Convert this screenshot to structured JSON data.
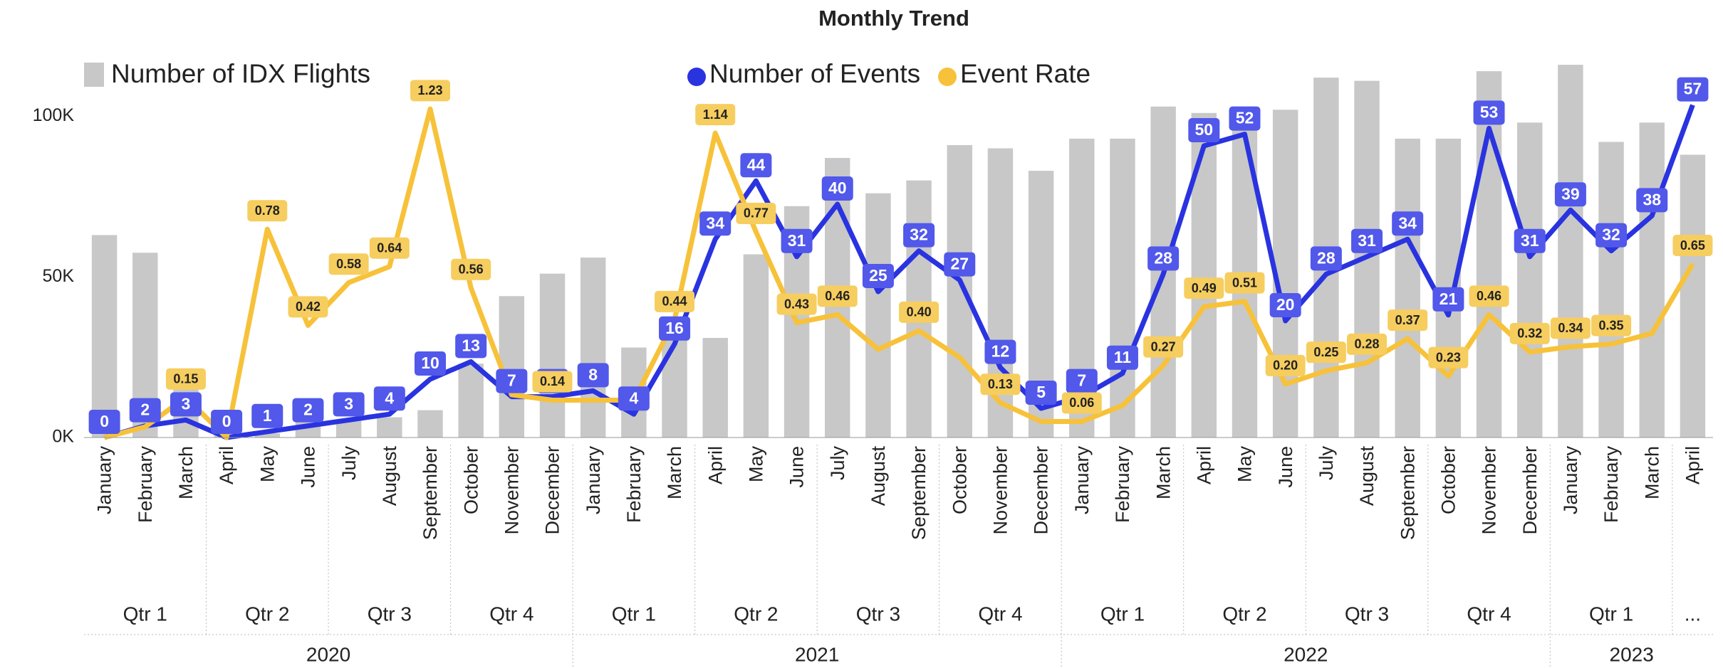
{
  "chart_data": {
    "type": "combo",
    "title": "Monthly Trend",
    "categories": [
      "January",
      "February",
      "March",
      "April",
      "May",
      "June",
      "July",
      "August",
      "September",
      "October",
      "November",
      "December",
      "January",
      "February",
      "March",
      "April",
      "May",
      "June",
      "July",
      "August",
      "September",
      "October",
      "November",
      "December",
      "January",
      "February",
      "March",
      "April",
      "May",
      "June",
      "July",
      "August",
      "September",
      "October",
      "November",
      "December",
      "January",
      "February",
      "March",
      "April"
    ],
    "quarters": [
      {
        "label": "Qtr 1",
        "months": 3
      },
      {
        "label": "Qtr 2",
        "months": 3
      },
      {
        "label": "Qtr 3",
        "months": 3
      },
      {
        "label": "Qtr 4",
        "months": 3
      },
      {
        "label": "Qtr 1",
        "months": 3
      },
      {
        "label": "Qtr 2",
        "months": 3
      },
      {
        "label": "Qtr 3",
        "months": 3
      },
      {
        "label": "Qtr 4",
        "months": 3
      },
      {
        "label": "Qtr 1",
        "months": 3
      },
      {
        "label": "Qtr 2",
        "months": 3
      },
      {
        "label": "Qtr 3",
        "months": 3
      },
      {
        "label": "Qtr 4",
        "months": 3
      },
      {
        "label": "Qtr 1",
        "months": 3
      },
      {
        "label": "...",
        "months": 1
      }
    ],
    "years": [
      {
        "label": "2020",
        "months": 12
      },
      {
        "label": "2021",
        "months": 12
      },
      {
        "label": "2022",
        "months": 12
      },
      {
        "label": "2023",
        "months": 4
      }
    ],
    "ylim": [
      0,
      118000
    ],
    "yticks": [
      {
        "value": 0,
        "label": "0K"
      },
      {
        "value": 50000,
        "label": "50K"
      },
      {
        "value": 100000,
        "label": "100K"
      }
    ],
    "y2lim": [
      0,
      65
    ],
    "y3lim": [
      0,
      1.42
    ],
    "grid": false,
    "legend": "top",
    "series": [
      {
        "name": "Number of IDX Flights",
        "type": "bar",
        "color": "#c8c8c8",
        "values": [
          63000,
          57500,
          20000,
          1000,
          1300,
          4800,
          5200,
          6300,
          8500,
          23000,
          44000,
          51000,
          56000,
          28000,
          36000,
          31000,
          57000,
          72000,
          87000,
          76000,
          80000,
          91000,
          90000,
          83000,
          93000,
          93000,
          103000,
          101000,
          102000,
          102000,
          112000,
          111000,
          93000,
          93000,
          114000,
          98000,
          116000,
          92000,
          98000,
          88000
        ]
      },
      {
        "name": "Number of Events",
        "type": "line",
        "axis": "y2",
        "color": "#2a33e0",
        "label_color": "#5158ea",
        "values": [
          0,
          2,
          3,
          0,
          1,
          2,
          3,
          4,
          10,
          13,
          7,
          7,
          8,
          4,
          16,
          34,
          44,
          31,
          40,
          25,
          32,
          27,
          12,
          5,
          7,
          11,
          28,
          50,
          52,
          20,
          28,
          31,
          34,
          21,
          53,
          31,
          39,
          32,
          38,
          57
        ]
      },
      {
        "name": "Event Rate",
        "type": "line",
        "axis": "y3",
        "color": "#f7c23a",
        "label_color": "#f6cd5f",
        "values": [
          0,
          0.04,
          0.15,
          0,
          0.78,
          0.42,
          0.58,
          0.64,
          1.23,
          0.56,
          0.16,
          0.14,
          0.14,
          0.14,
          0.44,
          1.14,
          0.77,
          0.43,
          0.46,
          0.33,
          0.4,
          0.3,
          0.13,
          0.06,
          0.06,
          0.12,
          0.27,
          0.49,
          0.51,
          0.2,
          0.25,
          0.28,
          0.37,
          0.23,
          0.46,
          0.32,
          0.34,
          0.35,
          0.39,
          0.65
        ],
        "value_labels": [
          null,
          null,
          "0.15",
          null,
          "0.78",
          "0.42",
          "0.58",
          "0.64",
          "1.23",
          "0.56",
          null,
          "0.14",
          null,
          null,
          "0.44",
          "1.14",
          "0.77",
          "0.43",
          "0.46",
          null,
          "0.40",
          null,
          "0.13",
          null,
          "0.06",
          null,
          "0.27",
          "0.49",
          "0.51",
          "0.20",
          "0.25",
          "0.28",
          "0.37",
          "0.23",
          "0.46",
          "0.32",
          "0.34",
          "0.35",
          null,
          "0.65"
        ]
      }
    ]
  }
}
